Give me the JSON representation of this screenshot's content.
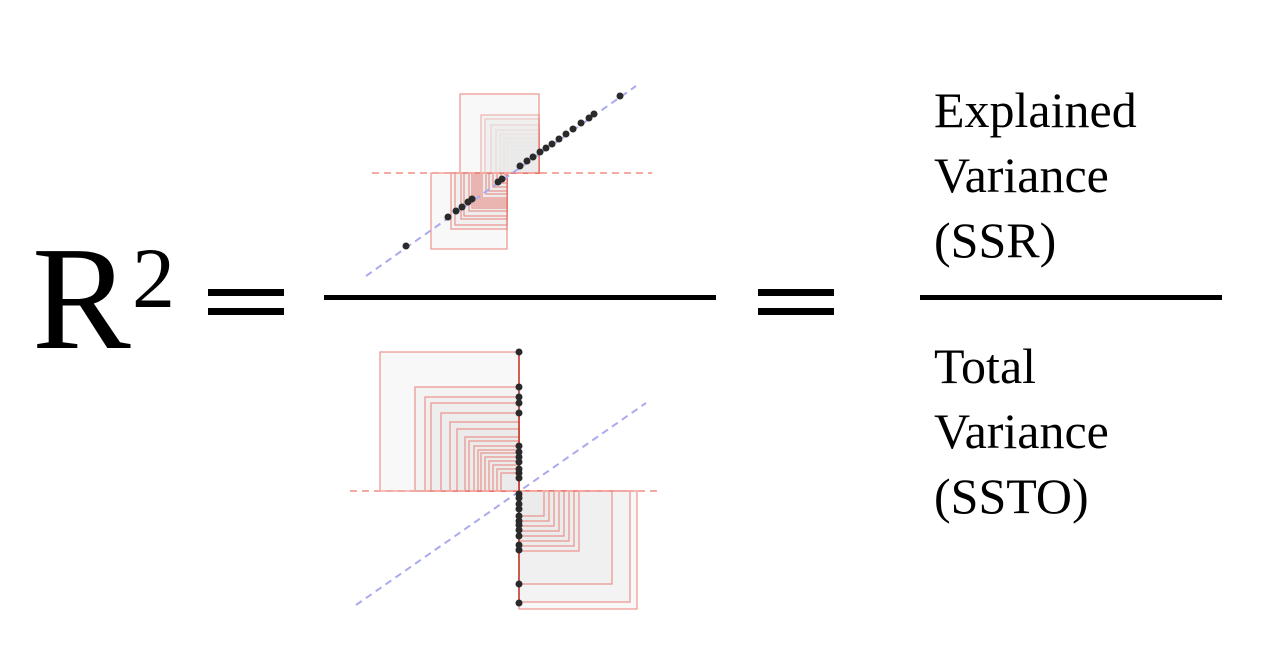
{
  "formula": {
    "lhs": "R",
    "lhs_superscript": "2",
    "equals": "="
  },
  "numerator": {
    "lines": [
      "Explained",
      "Variance",
      "(SSR)"
    ]
  },
  "denominator": {
    "lines": [
      "Total",
      "Variance",
      "(SSTO)"
    ]
  },
  "colors": {
    "square_fill": "#ebebeb",
    "square_stroke": "#e8736b",
    "mean_line": "#f4a9a3",
    "regression_line": "#aaaaee",
    "point": "#2a2a2a"
  }
}
